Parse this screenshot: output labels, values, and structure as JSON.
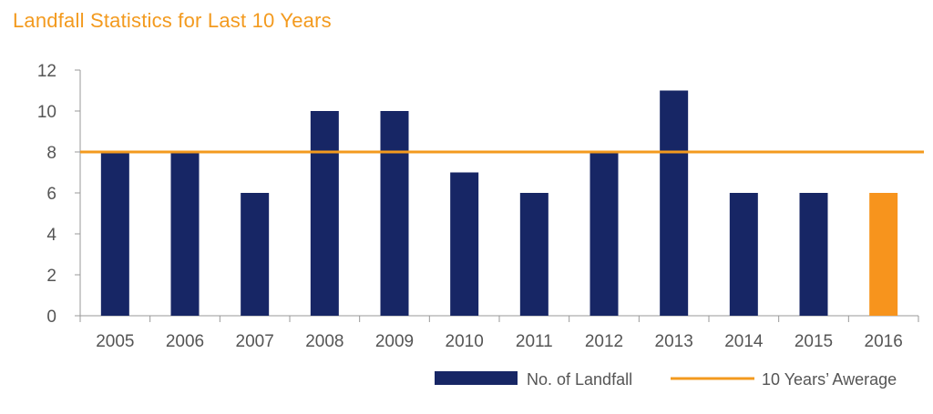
{
  "chart_data": {
    "type": "bar",
    "title": "Landfall Statistics for Last 10 Years",
    "categories": [
      "2005",
      "2006",
      "2007",
      "2008",
      "2009",
      "2010",
      "2011",
      "2012",
      "2013",
      "2014",
      "2015",
      "2016"
    ],
    "series": [
      {
        "name": "No. of Landfall",
        "values": [
          8,
          8,
          6,
          10,
          10,
          7,
          6,
          8,
          11,
          6,
          6,
          6
        ]
      }
    ],
    "average": {
      "name": "10 Years’ Awerage",
      "value": 8
    },
    "highlight_index": 11,
    "ylim": [
      0,
      12
    ],
    "yticks": [
      0,
      2,
      4,
      6,
      8,
      10,
      12
    ],
    "xlabel": "",
    "ylabel": "",
    "grid": false,
    "legend_position": "bottom-right",
    "colors": {
      "bar": "#172665",
      "highlight": "#f7941d",
      "average_line": "#f39a1e",
      "title": "#f39a1e",
      "axis": "#999999",
      "text": "#555555"
    }
  }
}
